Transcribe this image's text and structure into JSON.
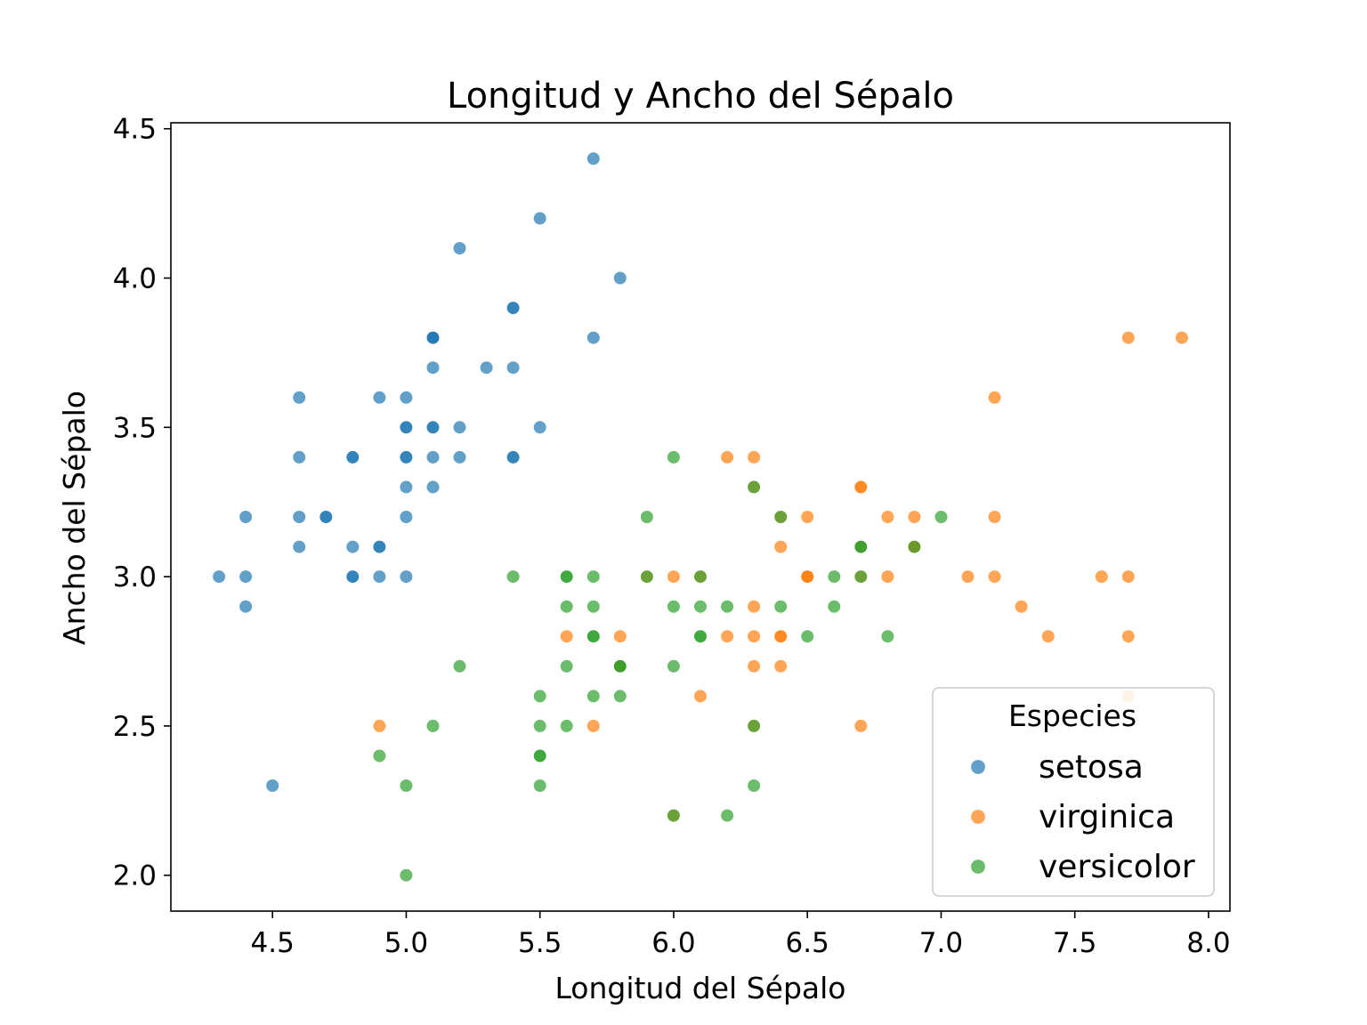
{
  "chart_data": {
    "type": "scatter",
    "title": "Longitud y Ancho del Sépalo",
    "xlabel": "Longitud del Sépalo",
    "ylabel": "Ancho del Sépalo",
    "xlim": [
      4.12,
      8.08
    ],
    "ylim": [
      1.88,
      4.52
    ],
    "xticks": [
      "4.5",
      "5.0",
      "5.5",
      "6.0",
      "6.5",
      "7.0",
      "7.5",
      "8.0"
    ],
    "yticks": [
      "2.0",
      "2.5",
      "3.0",
      "3.5",
      "4.0",
      "4.5"
    ],
    "grid": false,
    "legend": {
      "title": "Especies",
      "position": "bottom-right"
    },
    "series": [
      {
        "name": "setosa",
        "color": "#1f77b4",
        "points": [
          [
            5.1,
            3.5
          ],
          [
            4.9,
            3.0
          ],
          [
            4.7,
            3.2
          ],
          [
            4.6,
            3.1
          ],
          [
            5.0,
            3.6
          ],
          [
            5.4,
            3.9
          ],
          [
            4.6,
            3.4
          ],
          [
            5.0,
            3.4
          ],
          [
            4.4,
            2.9
          ],
          [
            4.9,
            3.1
          ],
          [
            5.4,
            3.7
          ],
          [
            4.8,
            3.4
          ],
          [
            4.8,
            3.0
          ],
          [
            4.3,
            3.0
          ],
          [
            5.8,
            4.0
          ],
          [
            5.7,
            4.4
          ],
          [
            5.4,
            3.9
          ],
          [
            5.1,
            3.5
          ],
          [
            5.7,
            3.8
          ],
          [
            5.1,
            3.8
          ],
          [
            5.4,
            3.4
          ],
          [
            5.1,
            3.7
          ],
          [
            4.6,
            3.6
          ],
          [
            5.1,
            3.3
          ],
          [
            4.8,
            3.4
          ],
          [
            5.0,
            3.0
          ],
          [
            5.0,
            3.4
          ],
          [
            5.2,
            3.5
          ],
          [
            5.2,
            3.4
          ],
          [
            4.7,
            3.2
          ],
          [
            4.8,
            3.1
          ],
          [
            5.4,
            3.4
          ],
          [
            5.2,
            4.1
          ],
          [
            5.5,
            4.2
          ],
          [
            4.9,
            3.1
          ],
          [
            5.0,
            3.2
          ],
          [
            5.5,
            3.5
          ],
          [
            4.9,
            3.6
          ],
          [
            4.4,
            3.0
          ],
          [
            5.1,
            3.4
          ],
          [
            5.0,
            3.5
          ],
          [
            4.5,
            2.3
          ],
          [
            4.4,
            3.2
          ],
          [
            5.0,
            3.5
          ],
          [
            5.1,
            3.8
          ],
          [
            4.8,
            3.0
          ],
          [
            5.1,
            3.8
          ],
          [
            4.6,
            3.2
          ],
          [
            5.3,
            3.7
          ],
          [
            5.0,
            3.3
          ]
        ]
      },
      {
        "name": "virginica",
        "color": "#ff7f0e",
        "points": [
          [
            6.3,
            3.3
          ],
          [
            5.8,
            2.7
          ],
          [
            7.1,
            3.0
          ],
          [
            6.3,
            2.9
          ],
          [
            6.5,
            3.0
          ],
          [
            7.6,
            3.0
          ],
          [
            4.9,
            2.5
          ],
          [
            7.3,
            2.9
          ],
          [
            6.7,
            2.5
          ],
          [
            7.2,
            3.6
          ],
          [
            6.5,
            3.2
          ],
          [
            6.4,
            2.7
          ],
          [
            6.8,
            3.0
          ],
          [
            5.7,
            2.5
          ],
          [
            5.8,
            2.8
          ],
          [
            6.4,
            3.2
          ],
          [
            6.5,
            3.0
          ],
          [
            7.7,
            3.8
          ],
          [
            7.7,
            2.6
          ],
          [
            6.0,
            2.2
          ],
          [
            6.9,
            3.2
          ],
          [
            5.6,
            2.8
          ],
          [
            7.7,
            2.8
          ],
          [
            6.3,
            2.7
          ],
          [
            6.7,
            3.3
          ],
          [
            7.2,
            3.2
          ],
          [
            6.2,
            2.8
          ],
          [
            6.1,
            3.0
          ],
          [
            6.4,
            2.8
          ],
          [
            7.2,
            3.0
          ],
          [
            7.4,
            2.8
          ],
          [
            7.9,
            3.8
          ],
          [
            6.4,
            2.8
          ],
          [
            6.3,
            2.8
          ],
          [
            6.1,
            2.6
          ],
          [
            7.7,
            3.0
          ],
          [
            6.3,
            3.4
          ],
          [
            6.4,
            3.1
          ],
          [
            6.0,
            3.0
          ],
          [
            6.9,
            3.1
          ],
          [
            6.7,
            3.1
          ],
          [
            6.9,
            3.1
          ],
          [
            5.8,
            2.7
          ],
          [
            6.8,
            3.2
          ],
          [
            6.7,
            3.3
          ],
          [
            6.7,
            3.0
          ],
          [
            6.3,
            2.5
          ],
          [
            6.5,
            3.0
          ],
          [
            6.2,
            3.4
          ],
          [
            5.9,
            3.0
          ]
        ]
      },
      {
        "name": "versicolor",
        "color": "#2ca02c",
        "points": [
          [
            7.0,
            3.2
          ],
          [
            6.4,
            3.2
          ],
          [
            6.9,
            3.1
          ],
          [
            5.5,
            2.3
          ],
          [
            6.5,
            2.8
          ],
          [
            5.7,
            2.8
          ],
          [
            6.3,
            3.3
          ],
          [
            4.9,
            2.4
          ],
          [
            6.6,
            2.9
          ],
          [
            5.2,
            2.7
          ],
          [
            5.0,
            2.0
          ],
          [
            5.9,
            3.0
          ],
          [
            6.0,
            2.2
          ],
          [
            6.1,
            2.9
          ],
          [
            5.6,
            2.9
          ],
          [
            6.7,
            3.1
          ],
          [
            5.6,
            3.0
          ],
          [
            5.8,
            2.7
          ],
          [
            6.2,
            2.2
          ],
          [
            5.6,
            2.5
          ],
          [
            5.9,
            3.2
          ],
          [
            6.1,
            2.8
          ],
          [
            6.3,
            2.5
          ],
          [
            6.1,
            2.8
          ],
          [
            6.4,
            2.9
          ],
          [
            6.6,
            3.0
          ],
          [
            6.8,
            2.8
          ],
          [
            6.7,
            3.0
          ],
          [
            6.0,
            2.9
          ],
          [
            5.7,
            2.6
          ],
          [
            5.5,
            2.4
          ],
          [
            5.5,
            2.4
          ],
          [
            5.8,
            2.7
          ],
          [
            6.0,
            2.7
          ],
          [
            5.4,
            3.0
          ],
          [
            6.0,
            3.4
          ],
          [
            6.7,
            3.1
          ],
          [
            6.3,
            2.3
          ],
          [
            5.6,
            3.0
          ],
          [
            5.5,
            2.5
          ],
          [
            5.5,
            2.6
          ],
          [
            6.1,
            3.0
          ],
          [
            5.8,
            2.6
          ],
          [
            5.0,
            2.3
          ],
          [
            5.6,
            2.7
          ],
          [
            5.7,
            3.0
          ],
          [
            5.7,
            2.9
          ],
          [
            6.2,
            2.9
          ],
          [
            5.1,
            2.5
          ],
          [
            5.7,
            2.8
          ]
        ]
      }
    ]
  }
}
